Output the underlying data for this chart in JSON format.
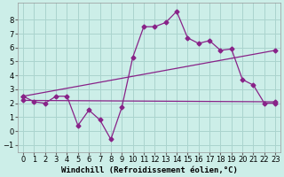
{
  "xlabel": "Windchill (Refroidissement éolien,°C)",
  "bg_color": "#cceee8",
  "grid_color": "#aad4ce",
  "line_color": "#882288",
  "xlim": [
    -0.5,
    23.5
  ],
  "ylim": [
    -1.5,
    9.2
  ],
  "yticks": [
    -1,
    0,
    1,
    2,
    3,
    4,
    5,
    6,
    7,
    8
  ],
  "xticks": [
    0,
    1,
    2,
    3,
    4,
    5,
    6,
    7,
    8,
    9,
    10,
    11,
    12,
    13,
    14,
    15,
    16,
    17,
    18,
    19,
    20,
    21,
    22,
    23
  ],
  "line1_x": [
    0,
    1,
    2,
    3,
    4,
    5,
    6,
    7,
    8,
    9,
    10,
    11,
    12,
    13,
    14,
    15,
    16,
    17,
    18,
    19,
    20,
    21,
    22,
    23
  ],
  "line1_y": [
    2.5,
    2.1,
    2.0,
    2.5,
    2.5,
    0.4,
    1.5,
    0.8,
    -0.6,
    1.7,
    5.3,
    7.5,
    7.5,
    7.8,
    8.6,
    6.7,
    6.3,
    6.5,
    5.8,
    5.9,
    3.7,
    3.3,
    2.0,
    2.0
  ],
  "line2_x": [
    0,
    23
  ],
  "line2_y": [
    2.5,
    5.8
  ],
  "line3_x": [
    0,
    23
  ],
  "line3_y": [
    2.2,
    2.1
  ],
  "xlabel_fontsize": 6.5,
  "tick_fontsize": 6,
  "markersize": 2.5
}
